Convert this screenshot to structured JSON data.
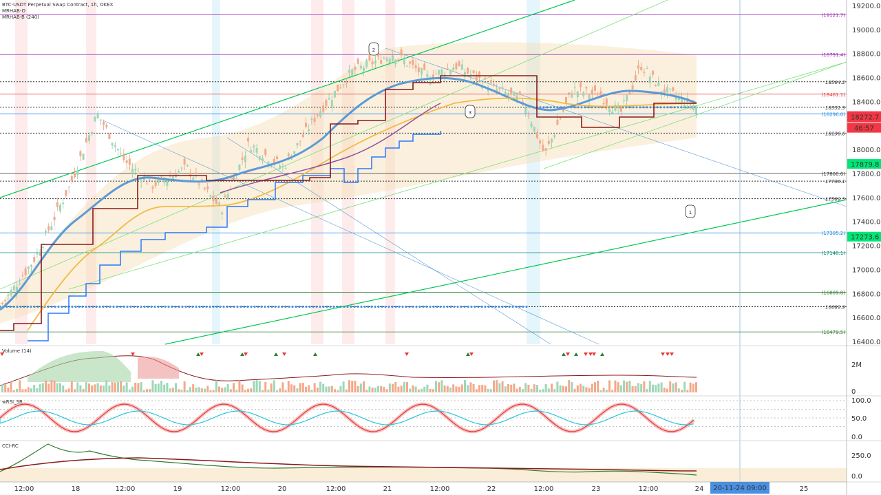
{
  "header": {
    "symbol_title": "BTC-USDT Perpetual Swap Contract, 1h, OKEX",
    "indicator_1": "MRHAB-O",
    "indicator_2": "MRHAB-B (240)"
  },
  "panes": {
    "volume_label": "Volume (14)",
    "wrsi_label": "wRSI_SR",
    "cci_label": "CCI-RC"
  },
  "chart_data": {
    "type": "candlestick",
    "price_axis_ticks": [
      "19200.0",
      "19000.0",
      "18800.0",
      "18600.0",
      "18400.0",
      "18200.0",
      "18000.0",
      "17800.0",
      "17600.0",
      "17400.0",
      "17200.0",
      "17000.0",
      "16800.0",
      "16600.0",
      "16400.0"
    ],
    "time_axis_ticks": [
      "12:00",
      "18",
      "12:00",
      "19",
      "12:00",
      "20",
      "12:00",
      "21",
      "12:00",
      "22",
      "12:00",
      "23",
      "12:00",
      "24",
      "25"
    ],
    "current_time_label": "20-11-24   09:00",
    "last_price": "18272.7",
    "countdown": "46:57",
    "level_labels": [
      {
        "text": "(19121.7)",
        "price": 19121.7,
        "color": "#9c27b0"
      },
      {
        "text": "(18791.4)",
        "price": 18791.4,
        "color": "#9c27b0"
      },
      {
        "text": "18564.2",
        "price": 18564.2,
        "color": "#333333"
      },
      {
        "text": "(18461.1)",
        "price": 18461.1,
        "color": "#e53935"
      },
      {
        "text": "18351.9",
        "price": 18351.9,
        "color": "#333333"
      },
      {
        "text": "(18296.0)",
        "price": 18296.0,
        "color": "#1e88e5"
      },
      {
        "text": "18136.6",
        "price": 18136.6,
        "color": "#333333"
      },
      {
        "text": "(17800.6)",
        "price": 17800.6,
        "color": "#333333"
      },
      {
        "text": "17736.1",
        "price": 17736.1,
        "color": "#333333"
      },
      {
        "text": "17589.5",
        "price": 17589.5,
        "color": "#333333"
      },
      {
        "text": "(17305.2)",
        "price": 17305.2,
        "color": "#1e88e5"
      },
      {
        "text": "(17140.1)",
        "price": 17140.1,
        "color": "#00897b"
      },
      {
        "text": "(16809.8)",
        "price": 16809.8,
        "color": "#2e7d32"
      },
      {
        "text": "16689.9",
        "price": 16689.9,
        "color": "#333333"
      },
      {
        "text": "(16479.5)",
        "price": 16479.5,
        "color": "#2e7d32"
      }
    ],
    "green_price_badges": [
      "17879.8",
      "17273.6"
    ],
    "wave_labels": [
      "1",
      "2",
      "3"
    ],
    "volume_axis": [
      "2M",
      "0"
    ],
    "wrsi_axis": [
      "100.0",
      "50.0",
      "0.0"
    ],
    "cci_axis": [
      "250.0",
      "0.0"
    ],
    "ylim": [
      16380,
      19250
    ]
  },
  "colors": {
    "up": "#a5d6a7",
    "down": "#ef9a9a",
    "accent_red": "#f23645",
    "accent_green": "#00e676",
    "blue_line": "#5b9bd5",
    "orange_line": "#f5b942"
  }
}
